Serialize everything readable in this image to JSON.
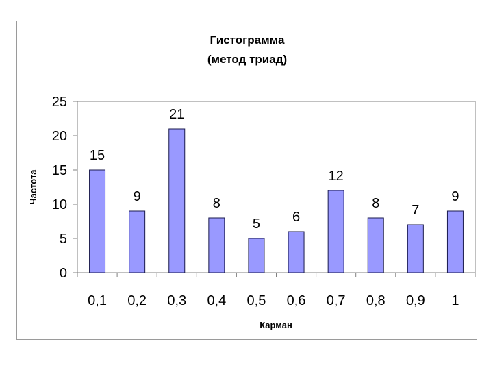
{
  "chart_data": {
    "type": "bar",
    "title": "Гистограмма",
    "subtitle": "(метод триад)",
    "xlabel": "Карман",
    "ylabel": "Частота",
    "categories": [
      "0,1",
      "0,2",
      "0,3",
      "0,4",
      "0,5",
      "0,6",
      "0,7",
      "0,8",
      "0,9",
      "1"
    ],
    "values": [
      15,
      9,
      21,
      8,
      5,
      6,
      12,
      8,
      7,
      9
    ],
    "ylim": [
      0,
      25
    ],
    "yticks": [
      "0",
      "5",
      "10",
      "15",
      "20",
      "25"
    ],
    "grid": false,
    "legend": "none",
    "data_labels": true,
    "colors": {
      "bar_fill": "#9999ff",
      "bar_stroke": "#1a1a4d",
      "axis": "#808080"
    }
  }
}
